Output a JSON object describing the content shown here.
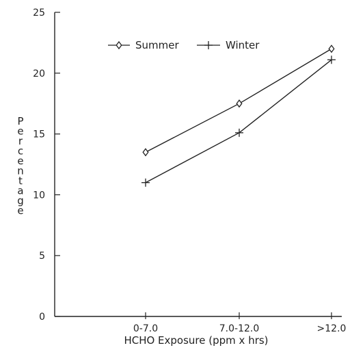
{
  "chart_data": {
    "type": "line",
    "title": "",
    "xlabel": "HCHO Exposure (ppm x hrs)",
    "ylabel": "Percentage",
    "categories": [
      "0-7.0",
      "7.0-12.0",
      ">12.0"
    ],
    "series": [
      {
        "name": "Summer",
        "marker": "diamond",
        "values": [
          13.5,
          17.5,
          22.0
        ]
      },
      {
        "name": "Winter",
        "marker": "plus",
        "values": [
          11.0,
          15.1,
          21.1
        ]
      }
    ],
    "ylim": [
      0,
      25
    ],
    "yticks": [
      "0",
      "5",
      "10",
      "15",
      "20",
      "25"
    ],
    "grid": false,
    "legend_position": "top-center",
    "colors": {
      "line": "#222222",
      "background": "#ffffff"
    }
  }
}
